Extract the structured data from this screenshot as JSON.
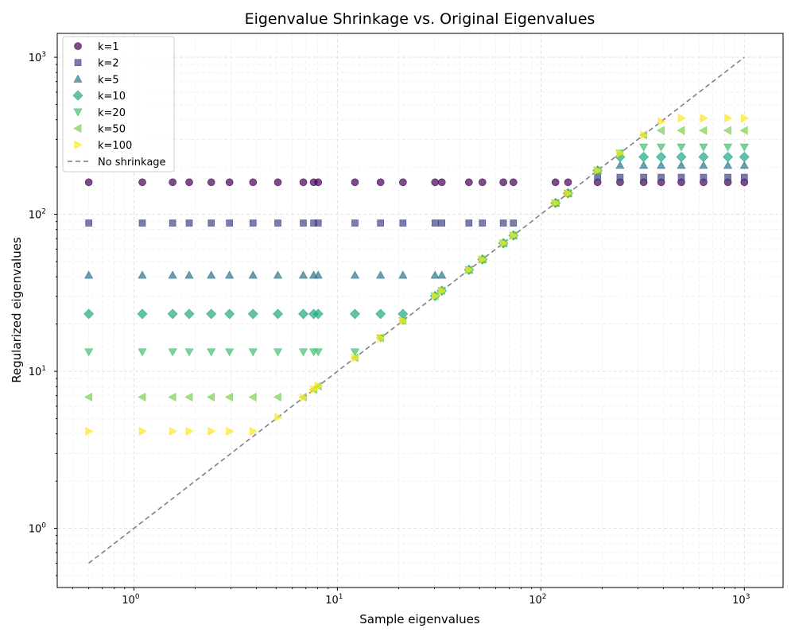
{
  "chart_data": {
    "type": "scatter",
    "title": "Eigenvalue Shrinkage vs. Original Eigenvalues",
    "xlabel": "Sample eigenvalues",
    "ylabel": "Regularized eigenvalues",
    "xscale": "log",
    "yscale": "log",
    "xlim": [
      0.42,
      1550
    ],
    "ylim": [
      0.42,
      1420
    ],
    "xticks": [
      1,
      10,
      100,
      1000
    ],
    "yticks": [
      1,
      10,
      100,
      1000
    ],
    "grid": true,
    "legend_position": "top-left",
    "x": [
      0.6,
      1.1,
      1.55,
      1.87,
      2.4,
      2.95,
      3.85,
      5.1,
      6.8,
      7.65,
      8.05,
      12.2,
      16.3,
      21.0,
      30.2,
      32.6,
      44.3,
      51.6,
      65.4,
      73.3,
      118.0,
      136.0,
      190.0,
      245.0,
      320.0,
      390.0,
      490.0,
      630.0,
      830.0,
      1000.0
    ],
    "series": [
      {
        "name": "k=1",
        "marker": "circle",
        "color": "#440154",
        "const": 160
      },
      {
        "name": "k=2",
        "marker": "square",
        "color": "#414487",
        "const": 88
      },
      {
        "name": "k=5",
        "marker": "triangle-up",
        "color": "#2a788e",
        "const": 41
      },
      {
        "name": "k=10",
        "marker": "diamond",
        "color": "#22a884",
        "const": 23.2
      },
      {
        "name": "k=20",
        "marker": "triangle-down",
        "color": "#44bf70",
        "const": 13.3
      },
      {
        "name": "k=50",
        "marker": "triangle-left",
        "color": "#7ad151",
        "const": 6.85
      },
      {
        "name": "k=100",
        "marker": "triangle-right",
        "color": "#fde725",
        "const": 4.15
      }
    ],
    "series_top_values": {
      "k=1": 160,
      "k=2": 172,
      "k=5": 205,
      "k=10": 232,
      "k=20": 268,
      "k=50": 342,
      "k=100": 410
    },
    "reference_line": {
      "name": "No shrinkage",
      "from": 0.6,
      "to": 1000,
      "color": "#808080",
      "style": "dashed"
    }
  }
}
